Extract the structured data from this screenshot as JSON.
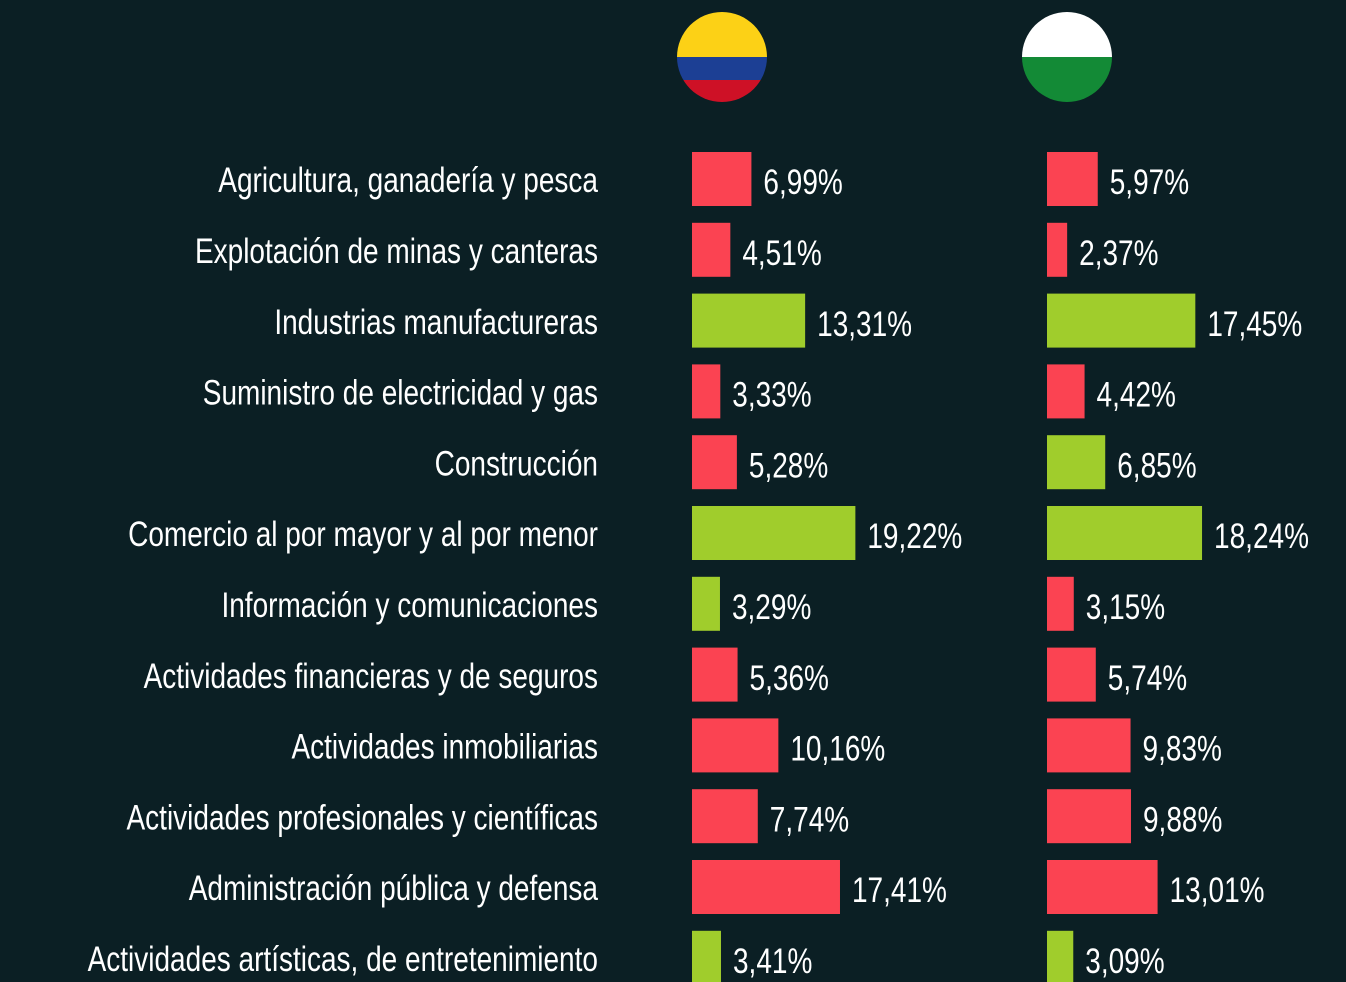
{
  "chart_data": {
    "type": "bar",
    "orientation": "horizontal",
    "categories": [
      "Agricultura, ganadería y pesca",
      "Explotación de minas y canteras",
      "Industrias manufactureras",
      "Suministro de electricidad y gas",
      "Construcción",
      "Comercio al por mayor y al por menor",
      "Información y comunicaciones",
      "Actividades financieras y de seguros",
      "Actividades inmobiliarias",
      "Actividades profesionales y científicas",
      "Administración pública y defensa",
      "Actividades artísticas, de entretenimiento"
    ],
    "series": [
      {
        "values": [
          6.99,
          4.51,
          13.31,
          3.33,
          5.28,
          19.22,
          3.29,
          5.36,
          10.16,
          7.74,
          17.41,
          3.41
        ],
        "value_labels": [
          "6,99%",
          "4,51%",
          "13,31%",
          "3,33%",
          "5,28%",
          "19,22%",
          "3,29%",
          "5,36%",
          "10,16%",
          "7,74%",
          "17,41%",
          "3,41%"
        ],
        "colors": [
          "#fb4352",
          "#fb4352",
          "#a0cd2c",
          "#fb4352",
          "#fb4352",
          "#a0cd2c",
          "#a0cd2c",
          "#fb4352",
          "#fb4352",
          "#fb4352",
          "#fb4352",
          "#a0cd2c"
        ]
      },
      {
        "values": [
          5.97,
          2.37,
          17.45,
          4.42,
          6.85,
          18.24,
          3.15,
          5.74,
          9.83,
          9.88,
          13.01,
          3.09
        ],
        "value_labels": [
          "5,97%",
          "2,37%",
          "17,45%",
          "4,42%",
          "6,85%",
          "18,24%",
          "3,15%",
          "5,74%",
          "9,83%",
          "9,88%",
          "13,01%",
          "3,09%"
        ],
        "colors": [
          "#fb4352",
          "#fb4352",
          "#a0cd2c",
          "#fb4352",
          "#a0cd2c",
          "#a0cd2c",
          "#fb4352",
          "#fb4352",
          "#fb4352",
          "#fb4352",
          "#fb4352",
          "#a0cd2c"
        ]
      }
    ]
  }
}
